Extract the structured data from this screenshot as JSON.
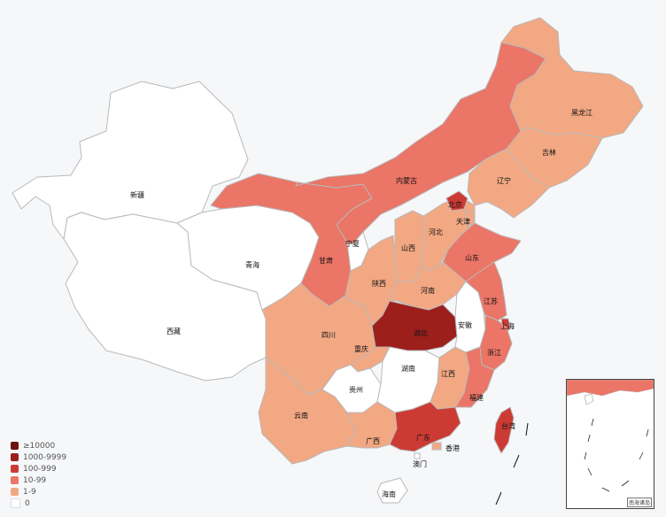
{
  "title": "",
  "legend": [
    {
      "label": "≥10000",
      "color": "#6b1212"
    },
    {
      "label": "1000-9999",
      "color": "#9c1f1c"
    },
    {
      "label": "100-999",
      "color": "#cc3b33"
    },
    {
      "label": "10-99",
      "color": "#eb7566"
    },
    {
      "label": "1-9",
      "color": "#f2a883"
    },
    {
      "label": "0",
      "color": "#ffffff"
    }
  ],
  "provinces": [
    {
      "name": "新疆",
      "color": "#ffffff"
    },
    {
      "name": "西藏",
      "color": "#ffffff"
    },
    {
      "name": "青海",
      "color": "#ffffff"
    },
    {
      "name": "甘肃",
      "color": "#eb7566"
    },
    {
      "name": "内蒙古",
      "color": "#eb7566"
    },
    {
      "name": "宁夏",
      "color": "#ffffff"
    },
    {
      "name": "四川",
      "color": "#f2a883"
    },
    {
      "name": "云南",
      "color": "#f2a883"
    },
    {
      "name": "陕西",
      "color": "#f2a883"
    },
    {
      "name": "山西",
      "color": "#f2a883"
    },
    {
      "name": "河北",
      "color": "#f2a883"
    },
    {
      "name": "北京",
      "color": "#cc3b33"
    },
    {
      "name": "天津",
      "color": "#f2a883"
    },
    {
      "name": "黑龙江",
      "color": "#f2a883"
    },
    {
      "name": "吉林",
      "color": "#f2a883"
    },
    {
      "name": "辽宁",
      "color": "#f2a883"
    },
    {
      "name": "山东",
      "color": "#eb7566"
    },
    {
      "name": "河南",
      "color": "#f2a883"
    },
    {
      "name": "湖北",
      "color": "#9c1f1c"
    },
    {
      "name": "重庆",
      "color": "#f2a883"
    },
    {
      "name": "贵州",
      "color": "#ffffff"
    },
    {
      "name": "湖南",
      "color": "#ffffff"
    },
    {
      "name": "江西",
      "color": "#f2a883"
    },
    {
      "name": "安徽",
      "color": "#ffffff"
    },
    {
      "name": "江苏",
      "color": "#eb7566"
    },
    {
      "name": "上海",
      "color": "#cc3b33"
    },
    {
      "name": "浙江",
      "color": "#eb7566"
    },
    {
      "name": "福建",
      "color": "#eb7566"
    },
    {
      "name": "广东",
      "color": "#cc3b33"
    },
    {
      "name": "广西",
      "color": "#f2a883"
    },
    {
      "name": "海南",
      "color": "#ffffff"
    },
    {
      "name": "台湾",
      "color": "#cc3b33"
    },
    {
      "name": "香港",
      "color": "#f2a883"
    },
    {
      "name": "澳门",
      "color": "#ffffff"
    }
  ],
  "inset_note": "南海诸岛"
}
